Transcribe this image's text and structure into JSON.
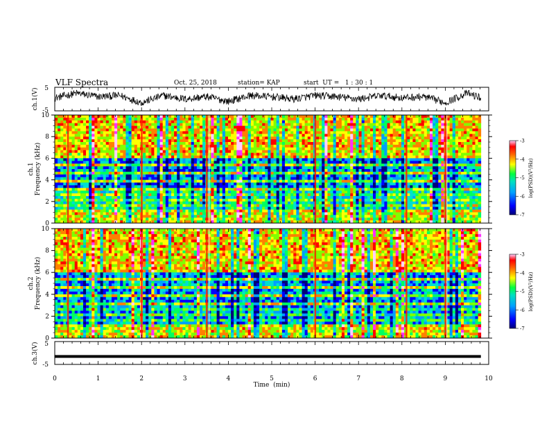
{
  "header": {
    "title": "VLF Spectra",
    "date": "Oct. 25, 2018",
    "station": "station= KAP",
    "start_ut": "start  UT =   1 : 30 : 1"
  },
  "colors": {
    "colormap": [
      "#00007a",
      "#0000ff",
      "#00a0ff",
      "#00e0d0",
      "#00ff60",
      "#80ff00",
      "#ffff00",
      "#ff8000",
      "#ff0000",
      "#ff30ff",
      "#ffd0ff"
    ],
    "axis": "#000000",
    "trace": "#000000"
  },
  "chart_data": [
    {
      "type": "line",
      "panel": "ch1_waveform",
      "ylabel": "ch.1(V)",
      "ylim": [
        -5,
        5
      ],
      "yticks": [
        "5",
        "-5"
      ],
      "xlim": [
        0,
        10
      ],
      "series": [
        {
          "x": [
            0,
            0.5,
            1,
            1.5,
            2,
            2.5,
            3,
            3.5,
            4,
            4.5,
            5,
            5.5,
            6,
            6.5,
            7,
            7.5,
            8,
            8.5,
            9,
            9.5,
            9.82
          ],
          "values": [
            0.5,
            2.5,
            1,
            1.5,
            -1.5,
            1.5,
            0,
            1,
            -1,
            1.5,
            1,
            0,
            1.5,
            1,
            0,
            1.5,
            0.5,
            1,
            -1.5,
            2.5,
            0.5
          ]
        }
      ]
    },
    {
      "type": "heatmap",
      "panel": "ch1_spectrogram",
      "ylabel": "ch.1\nFrequency  (kHz)",
      "ylim": [
        0,
        10
      ],
      "yticks": [
        "0",
        "2",
        "4",
        "6",
        "8",
        "10"
      ],
      "xlim": [
        0,
        10
      ],
      "colorbar": {
        "label": "log(PSD)(V²/Hz)",
        "range": [
          -7,
          -3
        ],
        "ticks": [
          "-3",
          "-4",
          "-5",
          "-6",
          "-7"
        ]
      }
    },
    {
      "type": "heatmap",
      "panel": "ch2_spectrogram",
      "ylabel": "ch.2\nFrequency  (kHz)",
      "ylim": [
        0,
        10
      ],
      "yticks": [
        "0",
        "2",
        "4",
        "6",
        "8",
        "10"
      ],
      "xlim": [
        0,
        10
      ],
      "colorbar": {
        "label": "log(PSD)(V²/Hz)",
        "range": [
          -7,
          -3
        ],
        "ticks": [
          "-3",
          "-4",
          "-5",
          "-6",
          "-7"
        ]
      }
    },
    {
      "type": "line",
      "panel": "ch3_waveform",
      "ylabel": "ch.3(V)",
      "ylim": [
        -5,
        5
      ],
      "yticks": [
        "5",
        "-5"
      ],
      "xlim": [
        0,
        10
      ],
      "series": [
        {
          "x": [
            0,
            9.82
          ],
          "values": [
            -1.5,
            -1.5
          ]
        }
      ]
    }
  ],
  "xaxis": {
    "label": "Time  (min)",
    "ticks": [
      "0",
      "1",
      "2",
      "3",
      "4",
      "5",
      "6",
      "7",
      "8",
      "9",
      "10"
    ]
  }
}
